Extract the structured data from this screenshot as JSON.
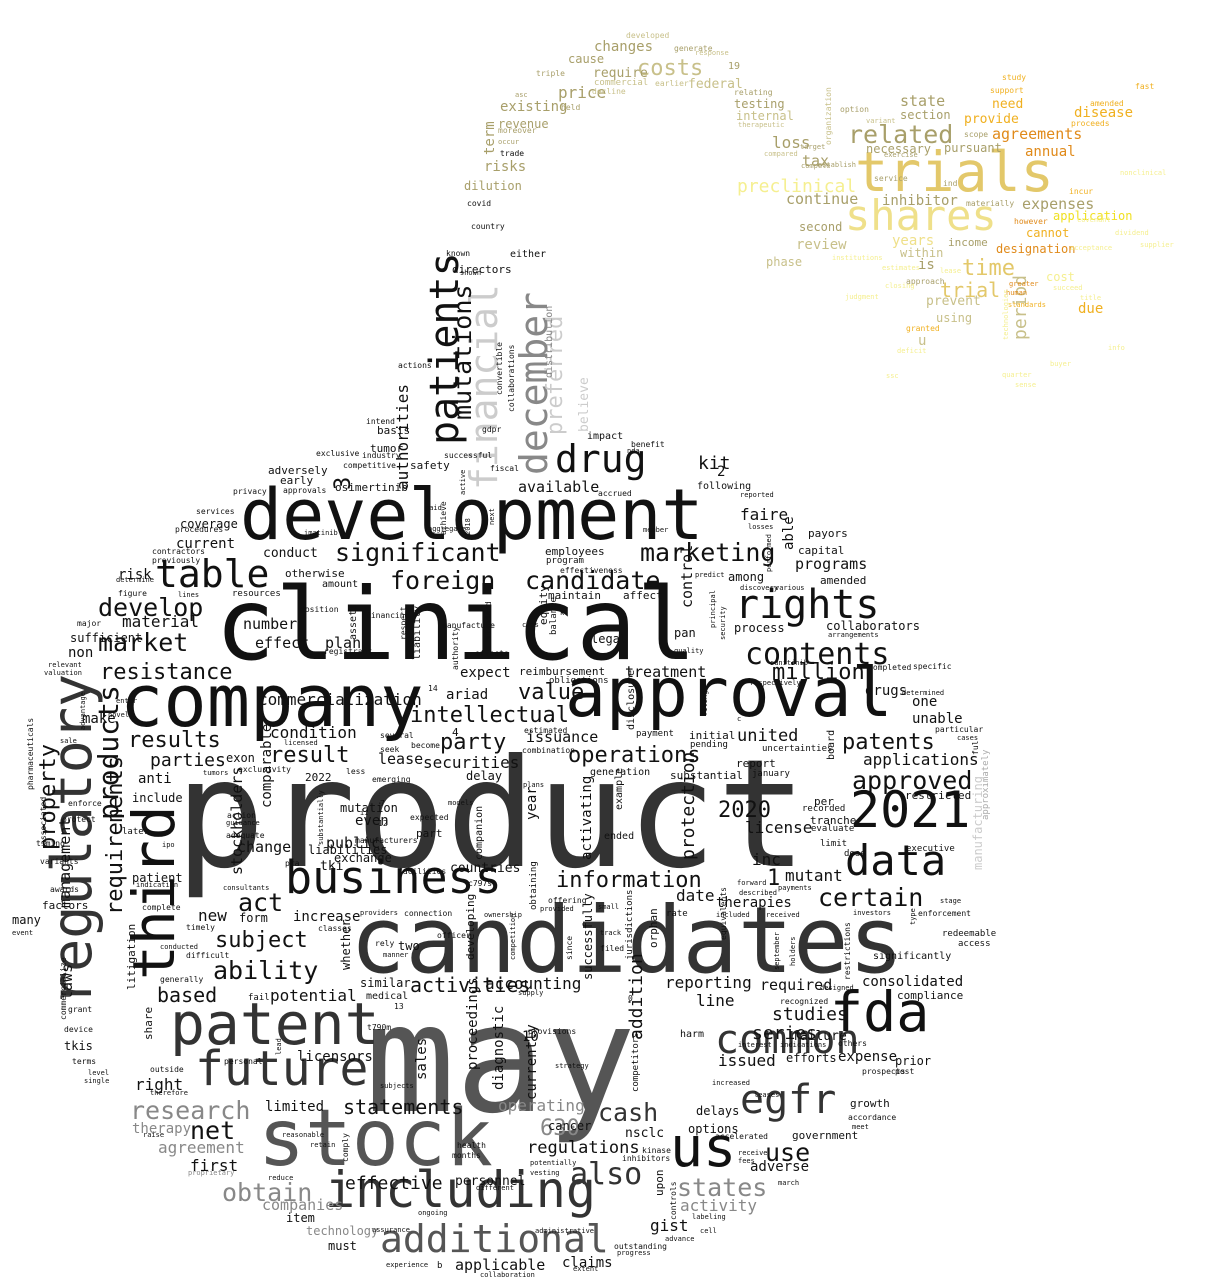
{
  "words": {
    "product": "product",
    "may": "may",
    "clinical": "clinical",
    "candidates": "candidates",
    "development": "development",
    "stock": "stock",
    "company": "company",
    "approval": "approval",
    "patent": "patent",
    "third": "third",
    "regulatory": "regulatory",
    "business": "business",
    "including": "including",
    "fda": "fda",
    "future": "future",
    "data": "data",
    "y2021": "2021",
    "us": "us",
    "common": "common",
    "egfr": "egfr",
    "additional": "additional",
    "table": "table",
    "drug": "drug",
    "patients": "patients",
    "december": "december",
    "financial": "financial",
    "mutations": "mutations",
    "preferred": "preferred",
    "trials": "trials",
    "shares": "shares",
    "rights": "rights",
    "contents": "contents",
    "requirements": "requirements",
    "products": "products",
    "market": "market",
    "develop": "develop",
    "significant": "significant",
    "marketing": "marketing",
    "foreign": "foreign",
    "candidate": "candidate",
    "resistance": "resistance",
    "results": "results",
    "value": "value",
    "intellectual": "intellectual",
    "party": "party",
    "result": "result",
    "patents": "patents",
    "approved": "approved",
    "certain": "certain",
    "information": "information",
    "ability": "ability",
    "subject": "subject",
    "act": "act",
    "research": "research",
    "net": "net",
    "obtain": "obtain",
    "also": "also",
    "cash": "cash",
    "states": "states",
    "use": "use",
    "statements": "statements",
    "activities": "activities",
    "operations": "operations",
    "million": "million",
    "time": "time",
    "related": "related",
    "property": "property",
    "laws": "laws",
    "management": "management",
    "based": "based",
    "potential": "potential",
    "series": "series",
    "studies": "studies",
    "consolidated": "consolidated",
    "operating": "operating",
    "regulations": "regulations",
    "effective": "effective",
    "companies": "companies",
    "agreement": "agreement",
    "first": "first",
    "therapy": "therapy",
    "applications": "applications",
    "united": "united",
    "securities": "securities",
    "costs": "costs",
    "price": "price",
    "loss": "loss",
    "expenses": "expenses",
    "preclinical": "preclinical",
    "years": "years",
    "trial": "trial",
    "kit": "kit",
    "available": "available",
    "issuance": "issuance",
    "mutant": "mutant",
    "inc": "inc",
    "license": "license",
    "y2020": "2020",
    "y630": "630",
    "y1": "1",
    "y2": "2",
    "y3": "3",
    "conduct": "conduct",
    "new": "new",
    "right": "right",
    "anti": "anti",
    "condition": "condition",
    "material": "material",
    "commercialization": "commercialization",
    "public": "public",
    "stockholders": "stockholders",
    "expect": "expect",
    "treatment": "treatment",
    "reporting": "reporting",
    "line": "line",
    "required": "required",
    "issued": "issued",
    "expense": "expense",
    "gist": "gist",
    "activity": "activity",
    "nsclc": "nsclc",
    "date": "date",
    "therapies": "therapies",
    "protection": "protection",
    "addition": "addition",
    "limited": "limited",
    "even": "even",
    "lease": "lease",
    "faire": "faire",
    "able": "able",
    "authorities": "authorities",
    "believe": "believe",
    "distribution": "distribution",
    "risks": "risks",
    "dilution": "dilution",
    "term": "term",
    "revenue": "revenue",
    "existing": "existing",
    "changes": "changes",
    "require": "require",
    "federal": "federal",
    "testing": "testing",
    "internal": "internal",
    "tax": "tax",
    "continue": "continue",
    "second": "second",
    "review": "review",
    "phase": "phase",
    "inhibitor": "inhibitor",
    "within": "within",
    "prevent": "prevent",
    "using": "using",
    "period": "period",
    "agreements": "agreements",
    "annual": "annual",
    "provide": "provide",
    "need": "need",
    "disease": "disease",
    "state": "state",
    "section": "section",
    "necessary": "necessary",
    "pursuant": "pursuant",
    "cannot": "cannot",
    "designation": "designation",
    "application": "application",
    "due": "due",
    "cost": "cost",
    "income": "income",
    "is": "is",
    "u": "u",
    "programs": "programs",
    "capital": "capital",
    "among": "among",
    "collaborators": "collaborators",
    "process": "process",
    "drugs": "drugs",
    "one": "one",
    "unable": "unable",
    "restricted": "restricted",
    "payors": "payors",
    "amended": "amended",
    "current": "current",
    "coverage": "coverage",
    "risk": "risk",
    "sufficient": "sufficient",
    "non": "non",
    "make": "make",
    "include": "include",
    "change": "change",
    "number": "number",
    "effect": "effect",
    "plan": "plan",
    "exon": "exon",
    "delay": "delay",
    "mutation": "mutation",
    "exchange": "exchange",
    "countries": "countries",
    "similar": "similar",
    "accounting": "accounting",
    "medical": "medical",
    "two": "two",
    "licensors": "licensors",
    "sales": "sales",
    "proceedings": "proceedings",
    "diagnostic": "diagnostic",
    "currently": "currently",
    "cancer": "cancer",
    "personnel": "personnel",
    "applicable": "applicable",
    "claims": "claims",
    "must": "must",
    "technology": "technology",
    "item": "item",
    "options": "options",
    "delays": "delays",
    "adverse": "adverse",
    "government": "government",
    "growth": "growth",
    "prior": "prior",
    "efforts": "efforts",
    "failure": "failure",
    "compliance": "compliance",
    "significantly": "significantly",
    "redeemable": "redeemable",
    "access": "access",
    "executive": "executive",
    "dose": "dose",
    "limit": "limit",
    "evaluate": "evaluate",
    "tranche": "tranche",
    "per": "per",
    "recorded": "recorded",
    "board": "board",
    "report": "report",
    "january": "january",
    "uncertainties": "uncertainties",
    "initial": "initial",
    "pending": "pending",
    "payment": "payment",
    "ariad": "ariad",
    "reimbursement": "reimbursement",
    "obligations": "obligations",
    "legal": "legal",
    "pan": "pan",
    "control": "control",
    "affect": "affect",
    "maintain": "maintain",
    "equity": "equity",
    "balance": "balance",
    "employees": "employees",
    "program": "program",
    "effectiveness": "effectiveness",
    "following": "following",
    "accrued": "accrued",
    "impact": "impact",
    "benefit": "benefit",
    "nda": "nda",
    "successful": "successful",
    "tumor": "tumor",
    "industry": "industry",
    "competitive": "competitive",
    "exclusive": "exclusive",
    "basis": "basis",
    "intend": "intend",
    "actions": "actions",
    "collaborations": "collaborations",
    "convertible": "convertible",
    "gdpr": "gdpr",
    "fiscal": "fiscal",
    "directors": "directors",
    "either": "either",
    "known": "known",
    "shown": "shown",
    "country": "country",
    "covid": "covid",
    "trade": "trade",
    "moreover": "moreover",
    "held": "held",
    "decline": "decline",
    "cause": "cause",
    "triple": "triple",
    "commercial": "commercial",
    "earlier": "earlier",
    "developed": "developed",
    "generate": "generate",
    "response": "response",
    "y19": "19",
    "relating": "relating",
    "therapeutic": "therapeutic",
    "target": "target",
    "compared": "compared",
    "establish": "establish",
    "service": "service",
    "exercise": "exercise",
    "organization": "organization",
    "variant": "variant",
    "option": "option",
    "inc2": "ind",
    "materially": "materially",
    "however": "however",
    "incur": "incur",
    "greater": "greater",
    "human": "human",
    "scope": "scope",
    "support": "support",
    "study": "study",
    "fast": "fast",
    "proceeds": "proceeds",
    "amended2": "amended",
    "granted": "granted",
    "approach": "approach",
    "adversely": "adversely",
    "early": "early",
    "safety": "safety",
    "osimertinib": "osimertinib",
    "privacy": "privacy",
    "approvals": "approvals",
    "services": "services",
    "procedures": "procedures",
    "contractors": "contractors",
    "previously": "previously",
    "determine": "determine",
    "figure": "figure",
    "lines": "lines",
    "major": "major",
    "relevant": "relevant",
    "valuation": "valuation",
    "advantage": "advantage",
    "novel": "novel",
    "enter": "enter",
    "sale": "sale",
    "pharmaceuticals": "pharmaceuticals",
    "associated": "associated",
    "enforce": "enforce",
    "protect": "protect",
    "timing": "timing",
    "variants": "variants",
    "awards": "awards",
    "factors": "factors",
    "many": "many",
    "event": "event",
    "commercialize": "commercialize",
    "grant": "grant",
    "device": "device",
    "tkis": "tkis",
    "terms": "terms",
    "level": "level",
    "single": "single",
    "outside": "outside",
    "therefore": "therefore",
    "raise": "raise",
    "proprietary": "proprietary",
    "share": "share",
    "litigation": "litigation",
    "otherwise": "otherwise",
    "resources": "resources",
    "amount": "amount",
    "assets": "assets",
    "respect": "respect",
    "liability": "liability",
    "standard": "standard",
    "effects": "effects",
    "authority": "authority",
    "financing": "financing",
    "registrant": "registrant",
    "position": "position",
    "several": "several",
    "seek": "seek",
    "become": "become",
    "combination": "combination",
    "estimated": "estimated",
    "disclosure": "disclosure",
    "generation": "generation",
    "example": "example",
    "ended": "ended",
    "companion": "companion",
    "activating": "activating",
    "year": "year",
    "plans": "plans",
    "models": "models",
    "part": "part",
    "expected": "expected",
    "facilities": "facilities",
    "liabilities": "liabilities",
    "tki": "tki",
    "comparable": "comparable",
    "emerging": "emerging",
    "less": "less",
    "licensed": "licensed",
    "exclusivity": "exclusivity",
    "tumors": "tumors",
    "action": "action",
    "guidance": "guidance",
    "adequate": "adequate",
    "later": "later",
    "ipo": "ipo",
    "patient": "patient",
    "indication": "indication",
    "complete": "complete",
    "timely": "timely",
    "difficult": "difficult",
    "conducted": "conducted",
    "generally": "generally",
    "fail": "fail",
    "classes": "classes",
    "manner": "manner",
    "whether": "whether",
    "officer": "officer",
    "connection": "connection",
    "providers": "providers",
    "rely": "rely",
    "developing": "developing",
    "ownership": "ownership",
    "competition": "competition",
    "supply": "supply",
    "obtaining": "obtaining",
    "offering": "offering",
    "provided": "provided",
    "since": "since",
    "successfully": "successfully",
    "filed": "filed",
    "small": "small",
    "track": "track",
    "jurisdictions": "jurisdictions",
    "orphan": "orphan",
    "competitors": "competitors",
    "upon": "upon",
    "harm": "harm",
    "rate": "rate",
    "equivalents": "equivalents",
    "included": "included",
    "received": "received",
    "recognized": "recognized",
    "holders": "holders",
    "september": "september",
    "restrictions": "restrictions",
    "designed": "designed",
    "others": "others",
    "prospects": "prospects",
    "post": "post",
    "accordance": "accordance",
    "meet": "meet",
    "accelerated": "accelerated",
    "receive": "receive",
    "fees": "fees",
    "march": "march",
    "controls": "controls",
    "kinase": "kinase",
    "inhibitors": "inhibitors",
    "vesting": "vesting",
    "potentially": "potentially",
    "strategy": "strategy",
    "months": "months",
    "health": "health",
    "different": "different",
    "ongoing": "ongoing",
    "reduce": "reduce",
    "retain": "retain",
    "reasonable": "reasonable",
    "comply": "comply",
    "personal": "personal",
    "lead": "lead",
    "subjects": "subjects",
    "provisions": "provisions",
    "administrative": "administrative",
    "progress": "progress",
    "outstanding": "outstanding",
    "advance": "advance",
    "cell": "cell",
    "labeling": "labeling",
    "extent": "extent",
    "collaboration": "collaboration",
    "experience": "experience",
    "assurance": "assurance",
    "interest": "interest",
    "indications": "indications",
    "increased": "increased",
    "leases": "leases",
    "increase": "increase",
    "form": "form",
    "parties": "parties",
    "consultants": "consultants",
    "enforcement": "enforcement",
    "investors": "investors",
    "stage": "stage",
    "type": "type",
    "forward": "forward",
    "described": "described",
    "payments": "payments",
    "particular": "particular",
    "cases": "cases",
    "approximately": "approximately",
    "manufacturing": "manufacturing",
    "manufacture": "manufacture",
    "quality": "quality",
    "security": "security",
    "principal": "principal",
    "filing": "filing",
    "sunitinib": "sunitinib",
    "arrangements": "arrangements",
    "discovery": "discovery",
    "various": "various",
    "predict": "predict",
    "performed": "performed",
    "losses": "losses",
    "member": "member",
    "reported": "reported",
    "achieve": "achieve",
    "aggregate": "aggregate",
    "paid": "paid",
    "active": "active",
    "next": "next",
    "y2018": "2018",
    "cros": "cros",
    "y2022": "2022",
    "c797s": "c797s",
    "t790m": "t790m",
    "pra": "pra",
    "y10": "10",
    "y4": "4",
    "y7": "7",
    "y12": "12",
    "y14": "14",
    "y13": "13",
    "y0": "0",
    "specific": "specific",
    "completed": "completed",
    "determined": "determined",
    "respectively": "respectively",
    "manufacturers": "manufacturers",
    "substantial": "substantial",
    "substantially": "substantially",
    "imatinib": "imatinib",
    "b": "b",
    "c": "c",
    "k": "k",
    "ii": "ii",
    "fal": "ful",
    "eligible": "eligible",
    "asc": "asc",
    "occur": "occur",
    "compete": "compete",
    "sum": "sum",
    "standards": "standards",
    "closing": "closing",
    "capitalized": "capitalized",
    "value2": "value",
    "lighthouse": "litigation",
    "emerging2": "orphan",
    "title": "title",
    "rate2": "rate",
    "fast2": "fast",
    "shall": "shall",
    "info": "info",
    "regardless": "regardless",
    "yellow1": "institutions",
    "yellow2": "acceptance",
    "yellow3": "supplier",
    "yellow4": "succeed",
    "yellow5": "technologies",
    "yellow6": "nonclinical",
    "yellow7": "sense",
    "yellow8": "buyer",
    "yellow9": "deficit",
    "yellow10": "ssc",
    "yellow11": "dividend",
    "yellow12": "lease",
    "yellow13": "quarter",
    "yellow14": "covenant",
    "yellow15": "estimates",
    "yellow16": "judgment"
  },
  "colors": {
    "black": "#111111",
    "dark": "#333333",
    "mid": "#555555",
    "gray": "#888888",
    "light": "#aaaaaa",
    "pale": "#cccccc",
    "olive": "#a89f6a",
    "khaki": "#c8c08a",
    "gold": "#e3c86a",
    "lightgold": "#efe08a",
    "orange": "#e08a1a",
    "yellow": "#f0e020",
    "paleyellow": "#f5ef90",
    "amber": "#f0b020"
  }
}
